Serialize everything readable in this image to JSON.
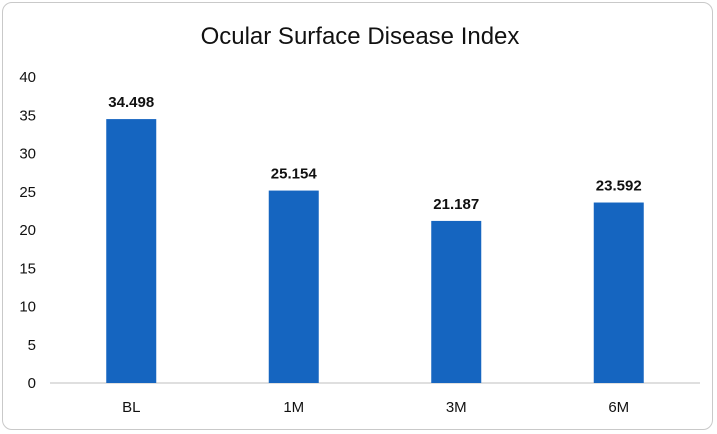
{
  "chart_data": {
    "type": "bar",
    "title": "Ocular Surface Disease Index",
    "categories": [
      "BL",
      "1M",
      "3M",
      "6M"
    ],
    "values": [
      34.498,
      25.154,
      21.187,
      23.592
    ],
    "data_labels": [
      "34.498",
      "25.154",
      "21.187",
      "23.592"
    ],
    "xlabel": "",
    "ylabel": "",
    "ylim": [
      0,
      40
    ],
    "yticks": [
      0,
      5,
      10,
      15,
      20,
      25,
      30,
      35,
      40
    ],
    "grid": false,
    "legend": "none",
    "bar_color": "#1565c0"
  }
}
